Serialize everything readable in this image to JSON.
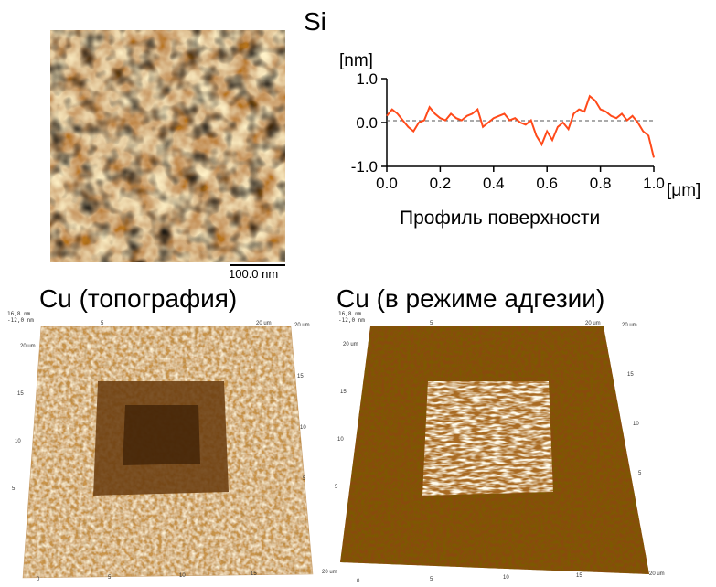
{
  "si_panel": {
    "title": "Si",
    "scalebar_label": "100.0 nm",
    "colormap": "afm-gold"
  },
  "profile": {
    "caption": "Профиль поверхности",
    "chart_data": {
      "type": "line",
      "title": "",
      "ylabel": "[nm]",
      "xlabel_unit": "[μm]",
      "xlim": [
        0.0,
        1.0
      ],
      "ylim": [
        -1.0,
        1.0
      ],
      "x_ticks": [
        "0.0",
        "0.2",
        "0.4",
        "0.6",
        "0.8",
        "1.0"
      ],
      "y_ticks": [
        "1.0",
        "0.0",
        "-1.0"
      ],
      "zero_line": "dashed",
      "grid": false,
      "color": "#ff4a1a",
      "series": [
        {
          "x": [
            0.0,
            0.02,
            0.04,
            0.06,
            0.08,
            0.1,
            0.12,
            0.14,
            0.16,
            0.18,
            0.2,
            0.22,
            0.24,
            0.26,
            0.28,
            0.3,
            0.32,
            0.34,
            0.36,
            0.38,
            0.4,
            0.42,
            0.44,
            0.46,
            0.48,
            0.5,
            0.52,
            0.54,
            0.56,
            0.58,
            0.6,
            0.62,
            0.64,
            0.66,
            0.68,
            0.7,
            0.72,
            0.74,
            0.76,
            0.78,
            0.8,
            0.82,
            0.84,
            0.86,
            0.88,
            0.9,
            0.92,
            0.94,
            0.96,
            0.98,
            1.0
          ],
          "y": [
            0.15,
            0.3,
            0.2,
            0.05,
            -0.1,
            -0.2,
            0.0,
            0.05,
            0.35,
            0.2,
            0.1,
            0.05,
            0.2,
            0.1,
            0.05,
            0.15,
            0.2,
            0.3,
            -0.1,
            0.0,
            0.1,
            0.15,
            0.2,
            0.05,
            0.1,
            0.0,
            -0.05,
            0.05,
            -0.3,
            -0.5,
            -0.2,
            -0.4,
            -0.1,
            0.0,
            -0.15,
            0.2,
            0.3,
            0.25,
            0.6,
            0.5,
            0.3,
            0.25,
            0.15,
            0.1,
            0.2,
            0.05,
            0.15,
            0.0,
            -0.2,
            -0.3,
            -0.8
          ]
        }
      ]
    }
  },
  "cu_topo": {
    "title": "Cu (топография)",
    "z_max": "16,8 nm",
    "z_min": "-12,0 nm",
    "axis_unit": "20 um",
    "left_ticks": [
      "20 um",
      "15",
      "10",
      "5"
    ],
    "top_ticks": [
      "5",
      "20 um"
    ],
    "right_ticks": [
      "20 um",
      "15",
      "10",
      "5"
    ],
    "bottom_ticks": [
      "0",
      "5",
      "10",
      "15",
      "20 um"
    ]
  },
  "cu_adh": {
    "title": "Cu (в режиме адгезии)",
    "z_max": "16,8 nm",
    "z_min": "-12,0 nm",
    "left_ticks": [
      "20 um",
      "15",
      "10",
      "5"
    ],
    "top_ticks": [
      "5",
      "20 um"
    ],
    "right_ticks": [
      "20 um",
      "15",
      "10",
      "5"
    ],
    "bottom_ticks": [
      "0",
      "5",
      "10",
      "15",
      "20 um"
    ]
  }
}
